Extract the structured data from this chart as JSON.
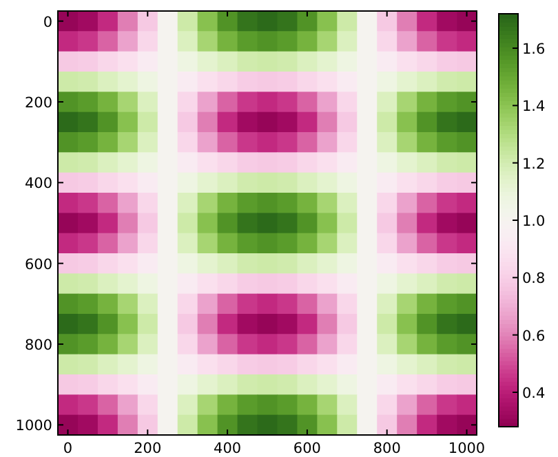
{
  "chart_data": {
    "type": "heatmap",
    "categories": [
      "0",
      null,
      null,
      null,
      "200",
      null,
      null,
      null,
      "400",
      null,
      null,
      null,
      "600",
      null,
      null,
      null,
      "800",
      null,
      null,
      null,
      "1000"
    ],
    "y_categories": [
      "0",
      null,
      null,
      null,
      "200",
      null,
      null,
      null,
      "400",
      null,
      null,
      null,
      "600",
      null,
      null,
      null,
      "800",
      null,
      null,
      null,
      "1000"
    ],
    "clim": [
      0.28,
      1.72
    ],
    "cticks": [
      {
        "value": 0.4,
        "label": "0.4"
      },
      {
        "value": 0.6,
        "label": "0.6"
      },
      {
        "value": 0.8,
        "label": "0.8"
      },
      {
        "value": 1.0,
        "label": "1.0"
      },
      {
        "value": 1.2,
        "label": "1.2"
      },
      {
        "value": 1.4,
        "label": "1.4"
      },
      {
        "value": 1.6,
        "label": "1.6"
      }
    ],
    "cells": [
      [
        0.3,
        0.33,
        0.43,
        0.59,
        0.78,
        1.0,
        1.22,
        1.41,
        1.57,
        1.67,
        1.7,
        1.67,
        1.57,
        1.41,
        1.22,
        1.0,
        0.78,
        0.59,
        0.43,
        0.33,
        0.3
      ],
      [
        0.43,
        0.46,
        0.54,
        0.67,
        0.83,
        1.0,
        1.17,
        1.33,
        1.46,
        1.54,
        1.57,
        1.54,
        1.46,
        1.33,
        1.17,
        1.0,
        0.83,
        0.67,
        0.54,
        0.46,
        0.43
      ],
      [
        0.78,
        0.79,
        0.83,
        0.87,
        0.93,
        1.0,
        1.07,
        1.13,
        1.17,
        1.21,
        1.22,
        1.21,
        1.17,
        1.13,
        1.07,
        1.0,
        0.93,
        0.87,
        0.83,
        0.79,
        0.78
      ],
      [
        1.22,
        1.21,
        1.17,
        1.13,
        1.07,
        1.0,
        0.93,
        0.87,
        0.83,
        0.79,
        0.78,
        0.79,
        0.83,
        0.87,
        0.93,
        1.0,
        1.07,
        1.13,
        1.17,
        1.21,
        1.22
      ],
      [
        1.57,
        1.54,
        1.46,
        1.33,
        1.17,
        1.0,
        0.83,
        0.67,
        0.54,
        0.46,
        0.43,
        0.46,
        0.54,
        0.67,
        0.83,
        1.0,
        1.17,
        1.33,
        1.46,
        1.54,
        1.57
      ],
      [
        1.7,
        1.67,
        1.57,
        1.41,
        1.22,
        1.0,
        0.78,
        0.59,
        0.43,
        0.33,
        0.3,
        0.33,
        0.43,
        0.59,
        0.78,
        1.0,
        1.22,
        1.41,
        1.57,
        1.67,
        1.7
      ],
      [
        1.57,
        1.54,
        1.46,
        1.33,
        1.17,
        1.0,
        0.83,
        0.67,
        0.54,
        0.46,
        0.43,
        0.46,
        0.54,
        0.67,
        0.83,
        1.0,
        1.17,
        1.33,
        1.46,
        1.54,
        1.57
      ],
      [
        1.22,
        1.21,
        1.17,
        1.13,
        1.07,
        1.0,
        0.93,
        0.87,
        0.83,
        0.79,
        0.78,
        0.79,
        0.83,
        0.87,
        0.93,
        1.0,
        1.07,
        1.13,
        1.17,
        1.21,
        1.22
      ],
      [
        0.78,
        0.79,
        0.83,
        0.87,
        0.93,
        1.0,
        1.07,
        1.13,
        1.17,
        1.21,
        1.22,
        1.21,
        1.17,
        1.13,
        1.07,
        1.0,
        0.93,
        0.87,
        0.83,
        0.79,
        0.78
      ],
      [
        0.43,
        0.46,
        0.54,
        0.67,
        0.83,
        1.0,
        1.17,
        1.33,
        1.46,
        1.54,
        1.57,
        1.54,
        1.46,
        1.33,
        1.17,
        1.0,
        0.83,
        0.67,
        0.54,
        0.46,
        0.43
      ],
      [
        0.3,
        0.33,
        0.43,
        0.59,
        0.78,
        1.0,
        1.22,
        1.41,
        1.57,
        1.67,
        1.7,
        1.67,
        1.57,
        1.41,
        1.22,
        1.0,
        0.78,
        0.59,
        0.43,
        0.33,
        0.3
      ],
      [
        0.43,
        0.46,
        0.54,
        0.67,
        0.83,
        1.0,
        1.17,
        1.33,
        1.46,
        1.54,
        1.57,
        1.54,
        1.46,
        1.33,
        1.17,
        1.0,
        0.83,
        0.67,
        0.54,
        0.46,
        0.43
      ],
      [
        0.78,
        0.79,
        0.83,
        0.87,
        0.93,
        1.0,
        1.07,
        1.13,
        1.17,
        1.21,
        1.22,
        1.21,
        1.17,
        1.13,
        1.07,
        1.0,
        0.93,
        0.87,
        0.83,
        0.79,
        0.78
      ],
      [
        1.22,
        1.21,
        1.17,
        1.13,
        1.07,
        1.0,
        0.93,
        0.87,
        0.83,
        0.79,
        0.78,
        0.79,
        0.83,
        0.87,
        0.93,
        1.0,
        1.07,
        1.13,
        1.17,
        1.21,
        1.22
      ],
      [
        1.57,
        1.54,
        1.46,
        1.33,
        1.17,
        1.0,
        0.83,
        0.67,
        0.54,
        0.46,
        0.43,
        0.46,
        0.54,
        0.67,
        0.83,
        1.0,
        1.17,
        1.33,
        1.46,
        1.54,
        1.57
      ],
      [
        1.7,
        1.67,
        1.57,
        1.41,
        1.22,
        1.0,
        0.78,
        0.59,
        0.43,
        0.33,
        0.3,
        0.33,
        0.43,
        0.59,
        0.78,
        1.0,
        1.22,
        1.41,
        1.57,
        1.67,
        1.7
      ],
      [
        1.57,
        1.54,
        1.46,
        1.33,
        1.17,
        1.0,
        0.83,
        0.67,
        0.54,
        0.46,
        0.43,
        0.46,
        0.54,
        0.67,
        0.83,
        1.0,
        1.17,
        1.33,
        1.46,
        1.54,
        1.57
      ],
      [
        1.22,
        1.21,
        1.17,
        1.13,
        1.07,
        1.0,
        0.93,
        0.87,
        0.83,
        0.79,
        0.78,
        0.79,
        0.83,
        0.87,
        0.93,
        1.0,
        1.07,
        1.13,
        1.17,
        1.21,
        1.22
      ],
      [
        0.78,
        0.79,
        0.83,
        0.87,
        0.93,
        1.0,
        1.07,
        1.13,
        1.17,
        1.21,
        1.22,
        1.21,
        1.17,
        1.13,
        1.07,
        1.0,
        0.93,
        0.87,
        0.83,
        0.79,
        0.78
      ],
      [
        0.43,
        0.46,
        0.54,
        0.67,
        0.83,
        1.0,
        1.17,
        1.33,
        1.46,
        1.54,
        1.57,
        1.54,
        1.46,
        1.33,
        1.17,
        1.0,
        0.83,
        0.67,
        0.54,
        0.46,
        0.43
      ],
      [
        0.3,
        0.33,
        0.43,
        0.59,
        0.78,
        1.0,
        1.22,
        1.41,
        1.57,
        1.67,
        1.7,
        1.67,
        1.57,
        1.41,
        1.22,
        1.0,
        0.78,
        0.59,
        0.43,
        0.33,
        0.3
      ]
    ]
  }
}
